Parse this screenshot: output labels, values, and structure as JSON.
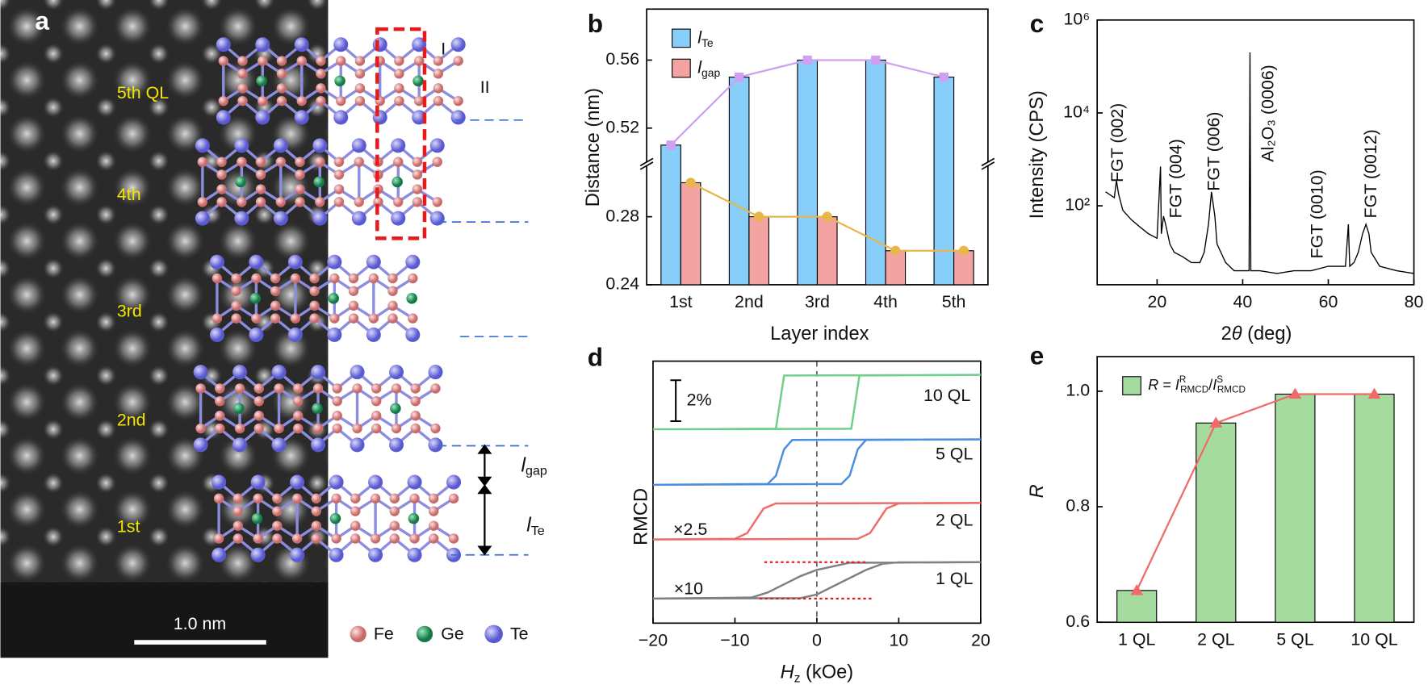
{
  "panel_a": {
    "panel_label": "a",
    "layers": [
      "5th QL",
      "4th",
      "3rd",
      "2nd",
      "1st"
    ],
    "regions": [
      "I",
      "II"
    ],
    "spacings": [
      "lgap",
      "lTe"
    ],
    "scale_bar": "1.0 nm",
    "elements": [
      "Fe",
      "Ge",
      "Te"
    ]
  },
  "chart_data": [
    {
      "type": "bar",
      "panel_label": "b",
      "categories": [
        "1st",
        "2nd",
        "3rd",
        "4th",
        "5th"
      ],
      "series": [
        {
          "name": "lTe",
          "color": "#87cefa",
          "line_color": "#cfa0f0",
          "marker": "square",
          "values": [
            0.51,
            0.55,
            0.56,
            0.56,
            0.55
          ]
        },
        {
          "name": "lgap",
          "color": "#f4a3a3",
          "line_color": "#e8b64c",
          "marker": "circle",
          "values": [
            0.3,
            0.28,
            0.28,
            0.26,
            0.26
          ]
        }
      ],
      "ylim": [
        0.24,
        0.59
      ],
      "y_break": [
        0.31,
        0.5
      ],
      "yticks": [
        0.24,
        0.28,
        0.52,
        0.56
      ],
      "y_label": "Distance (nm)",
      "x_label": "Layer index",
      "legend": "top-left"
    },
    {
      "type": "line",
      "panel_label": "c",
      "x": [
        8,
        10,
        10.5,
        11,
        12,
        14,
        16,
        18,
        20,
        20.8,
        21,
        21.5,
        22,
        23,
        24,
        26,
        28,
        30,
        31,
        32,
        32.7,
        33.5,
        34,
        36,
        38,
        40,
        41.5,
        41.7,
        41.9,
        44,
        48,
        52,
        56,
        60,
        64,
        64.7,
        65,
        66,
        67,
        68,
        68.8,
        69.5,
        70,
        72,
        76,
        80
      ],
      "values": [
        200,
        150,
        350,
        180,
        80,
        50,
        35,
        25,
        20,
        700,
        25,
        60,
        40,
        15,
        10,
        8,
        6,
        6,
        10,
        40,
        200,
        60,
        15,
        6,
        4,
        4,
        4,
        200000,
        4,
        4,
        3.5,
        4,
        4,
        5,
        5,
        40,
        5,
        6,
        10,
        25,
        40,
        25,
        10,
        5,
        4,
        3.5
      ],
      "color": "#000000",
      "log_y": true,
      "xlim": [
        6,
        80
      ],
      "xticks": [
        20,
        40,
        60,
        80
      ],
      "ylim": [
        2,
        1000000
      ],
      "yticks": [
        {
          "value": 100,
          "label": "10²"
        },
        {
          "value": 10000,
          "label": "10⁴"
        },
        {
          "value": 1000000,
          "label": "10⁶"
        }
      ],
      "x_label": "2θ (deg)",
      "y_label": "Intensity (CPS)",
      "annotations": [
        {
          "text": "FGT (002)",
          "x": 10.9,
          "y": 320
        },
        {
          "text": "FGT (004)",
          "x": 24.6,
          "y": 54
        },
        {
          "text": "FGT (006)",
          "x": 33.5,
          "y": 208
        },
        {
          "text": "Al₂O₃ (0006)",
          "x": 46.1,
          "y": 880
        },
        {
          "text": "FGT (0010)",
          "x": 57.6,
          "y": 7.3
        },
        {
          "text": "FGT (0012)",
          "x": 70.2,
          "y": 54
        }
      ]
    },
    {
      "type": "line",
      "panel_label": "d",
      "series": [
        {
          "name": "10 QL",
          "color": "#6fcf8a",
          "x": [
            -20,
            4.2,
            4.7,
            5.2,
            20,
            -4.0,
            -4.5,
            -5.0,
            -20
          ],
          "values": [
            9.47,
            9.5,
            10.8,
            12.1,
            12.13,
            12.1,
            10.8,
            9.5,
            9.47
          ]
        },
        {
          "name": "5 QL",
          "color": "#4a8fe0",
          "x": [
            -20,
            3,
            4,
            5,
            6,
            20,
            -3,
            -4,
            -5,
            -6,
            -20
          ],
          "values": [
            6.76,
            6.8,
            7.2,
            8.5,
            8.95,
            8.98,
            8.95,
            8.5,
            7.2,
            6.8,
            6.76
          ]
        },
        {
          "name": "2 QL",
          "color": "#ef6b6b",
          "multiplier_label": "×2.5",
          "x": [
            -20,
            5,
            6.5,
            7.5,
            8.5,
            10,
            20,
            -5,
            -6.5,
            -7.5,
            -8.5,
            -10,
            -20
          ],
          "values": [
            4.09,
            4.12,
            4.4,
            5.0,
            5.6,
            5.85,
            5.87,
            5.85,
            5.6,
            5.0,
            4.4,
            4.12,
            4.09
          ]
        },
        {
          "name": "1 QL",
          "color": "#808080",
          "multiplier_label": "×10",
          "x": [
            -20,
            -2,
            0,
            2,
            4,
            6,
            8,
            10,
            20,
            4,
            0,
            -2,
            -4,
            -6,
            -8,
            -20
          ],
          "values": [
            1.2,
            1.22,
            1.4,
            1.8,
            2.2,
            2.6,
            2.9,
            2.97,
            2.98,
            2.95,
            2.6,
            2.3,
            1.9,
            1.5,
            1.25,
            1.2
          ]
        }
      ],
      "xlim": [
        -20,
        20
      ],
      "xticks": [
        {
          "value": -20,
          "label": "−20"
        },
        {
          "value": -10,
          "label": "−10"
        },
        0,
        10,
        20
      ],
      "ylim": [
        0,
        12.8
      ],
      "x_label": "Hz (kOe)",
      "y_label": "RMCD",
      "scale_bar": {
        "value": 2,
        "label": "2%"
      },
      "reference_lines": [
        {
          "color": "#e02020",
          "x": [
            -6.4,
            6.3
          ],
          "y": 2.98
        },
        {
          "color": "#e02020",
          "x": [
            -7,
            6.9
          ],
          "y": 1.2
        }
      ]
    },
    {
      "type": "bar",
      "panel_label": "e",
      "categories": [
        "1 QL",
        "2 QL",
        "5 QL",
        "10 QL"
      ],
      "series": [
        {
          "name": "R = IRRMCD/ISRMCD",
          "color": "#a6dba0",
          "line_color": "#f06a6a",
          "marker": "triangle",
          "values": [
            0.655,
            0.945,
            0.995,
            0.995
          ]
        }
      ],
      "ylim": [
        0.6,
        1.06
      ],
      "yticks": [
        0.6,
        0.8,
        {
          "value": 1.0,
          "label": "1.0"
        }
      ],
      "y_label": "R",
      "legend": "top-left"
    }
  ]
}
